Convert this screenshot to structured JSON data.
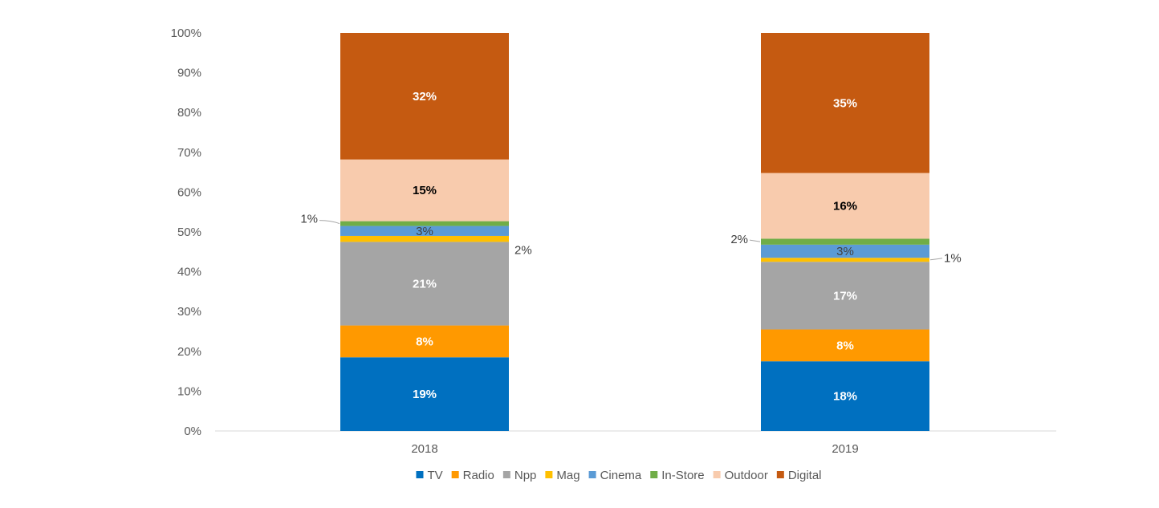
{
  "chart_data": {
    "type": "bar",
    "stacked": "percent",
    "categories": [
      "2018",
      "2019"
    ],
    "ylim": [
      0,
      100
    ],
    "yticks": [
      "0%",
      "10%",
      "20%",
      "30%",
      "40%",
      "50%",
      "60%",
      "70%",
      "80%",
      "90%",
      "100%"
    ],
    "title": "",
    "xlabel": "",
    "ylabel": "",
    "grid": false,
    "legend_position": "bottom",
    "series": [
      {
        "name": "TV",
        "color": "#0070C0",
        "values": [
          18.5,
          17.5
        ],
        "labels": [
          "19%",
          "18%"
        ]
      },
      {
        "name": "Radio",
        "color": "#FF9900",
        "values": [
          8,
          8
        ],
        "labels": [
          "8%",
          "8%"
        ]
      },
      {
        "name": "Npp",
        "color": "#A5A5A5",
        "values": [
          21,
          17
        ],
        "labels": [
          "21%",
          "17%"
        ]
      },
      {
        "name": "Mag",
        "color": "#FFC000",
        "values": [
          1.5,
          1
        ],
        "labels": [
          "2%",
          "1%"
        ]
      },
      {
        "name": "Cinema",
        "color": "#5B9BD5",
        "values": [
          2.5,
          3.3
        ],
        "labels": [
          "3%",
          "3%"
        ]
      },
      {
        "name": "In-Store",
        "color": "#70AD47",
        "values": [
          1.2,
          1.5
        ],
        "labels": [
          "1%",
          "2%"
        ]
      },
      {
        "name": "Outdoor",
        "color": "#F8CBAD",
        "values": [
          15.5,
          16.5
        ],
        "labels": [
          "15%",
          "16%"
        ]
      },
      {
        "name": "Digital",
        "color": "#C55A11",
        "values": [
          31.8,
          35.2
        ],
        "labels": [
          "32%",
          "35%"
        ]
      }
    ]
  }
}
